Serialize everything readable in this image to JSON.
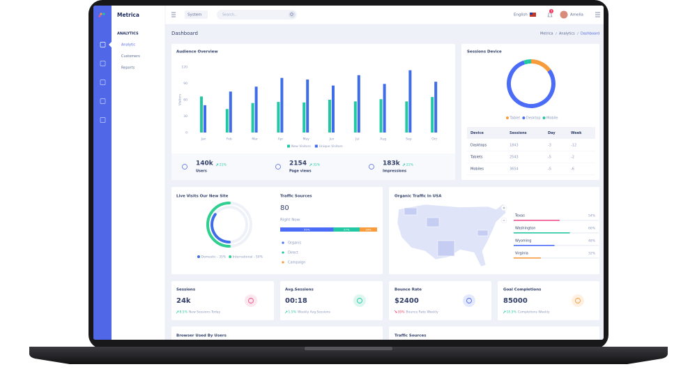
{
  "app": {
    "brand": "Metrica",
    "system": "System",
    "search_placeholder": "Search..",
    "language": "English",
    "notifications": "3",
    "user": "Amelia"
  },
  "sidebar": {
    "section": "ANALYTICS",
    "items": [
      "Analytic",
      "Customers",
      "Reports"
    ]
  },
  "page": {
    "title": "Dashboard",
    "breadcrumb": [
      "Metrica",
      "Analytics",
      "Dashboard"
    ]
  },
  "chart_data": [
    {
      "type": "bar",
      "title": "Audience Overview",
      "y_label": "Visitors",
      "categories": [
        "Jan",
        "Feb",
        "Mar",
        "Apr",
        "May",
        "Jun",
        "Jul",
        "Aug",
        "Sep",
        "Oct"
      ],
      "series": [
        {
          "name": "New Visitors",
          "color": "#22c8a3",
          "values": [
            66,
            43,
            54,
            56,
            55,
            60,
            57,
            61,
            57,
            65
          ]
        },
        {
          "name": "Unique Visitors",
          "color": "#3f6ce8",
          "values": [
            50,
            75,
            84,
            100,
            97,
            86,
            105,
            89,
            114,
            93
          ]
        }
      ],
      "ylim": [
        0,
        120
      ],
      "yticks": [
        0,
        30,
        60,
        90,
        120
      ],
      "grid": false
    },
    {
      "type": "donut",
      "title": "Sessions Device",
      "categories": [
        "Tablet",
        "Desktop",
        "Mobile"
      ],
      "values": [
        15,
        80,
        5
      ],
      "colors": [
        "#f79b3b",
        "#4a6cf7",
        "#22c8a3"
      ]
    },
    {
      "type": "radial",
      "title": "Live Visits Our New Site",
      "categories": [
        "Domestic",
        "International"
      ],
      "values": [
        35,
        50
      ],
      "value_labels": [
        "Domestic - 35%",
        "International - 50%"
      ],
      "colors": [
        "#3f6ce8",
        "#2fcf8f"
      ]
    },
    {
      "type": "stacked-bar",
      "title": "Traffic Sources",
      "current": 80,
      "current_label": "Right Now",
      "categories": [
        "Organic",
        "Direct",
        "Campaign"
      ],
      "values": [
        55,
        27,
        18
      ],
      "value_labels": [
        "55%",
        "27%",
        "18%"
      ],
      "colors": [
        "#4a6cf7",
        "#22c8a3",
        "#f79b3b"
      ],
      "xlim": [
        0,
        100
      ]
    },
    {
      "type": "hbar",
      "title": "Organic Traffic In USA",
      "categories": [
        "Texas",
        "Washington",
        "Wyoming",
        "Virginia"
      ],
      "values": [
        54,
        66,
        48,
        32
      ],
      "value_labels": [
        "54%",
        "66%",
        "48%",
        "32%"
      ],
      "colors": [
        "#f0508c",
        "#22c8a3",
        "#4a6cf7",
        "#f79b3b"
      ],
      "xlim": [
        0,
        100
      ]
    }
  ],
  "audience_stats": [
    {
      "value": "140k",
      "change": "21%",
      "label": "Users"
    },
    {
      "value": "2154",
      "change": "31%",
      "label": "Page views"
    },
    {
      "value": "183k",
      "change": "21%",
      "label": "Impressions"
    }
  ],
  "devices_table": {
    "header": [
      "Device",
      "Sessions",
      "Day",
      "Week"
    ],
    "rows": [
      [
        "Dasktops",
        "1843",
        "-3",
        "-12"
      ],
      [
        "Tablets",
        "2543",
        "-5",
        "-2"
      ],
      [
        "Mobiles",
        "3654",
        "-5",
        "-6"
      ]
    ]
  },
  "cards": [
    {
      "title": "Sessions",
      "value": "24k",
      "change": "8.5%",
      "note": "New Sessions Today",
      "trend": "up"
    },
    {
      "title": "Avg.Sessions",
      "value": "00:18",
      "change": "1.5%",
      "note": "Weekly Avg.Sessions",
      "trend": "up"
    },
    {
      "title": "Bounce Rate",
      "value": "$2400",
      "change": "35%",
      "note": "Bounce Rate Weekly",
      "trend": "down"
    },
    {
      "title": "Goal Completions",
      "value": "85000",
      "change": "10.5%",
      "note": "Completions Weekly",
      "trend": "up"
    }
  ],
  "bottom_cards": [
    "Browser Used By Users",
    "Traffic Sources"
  ]
}
